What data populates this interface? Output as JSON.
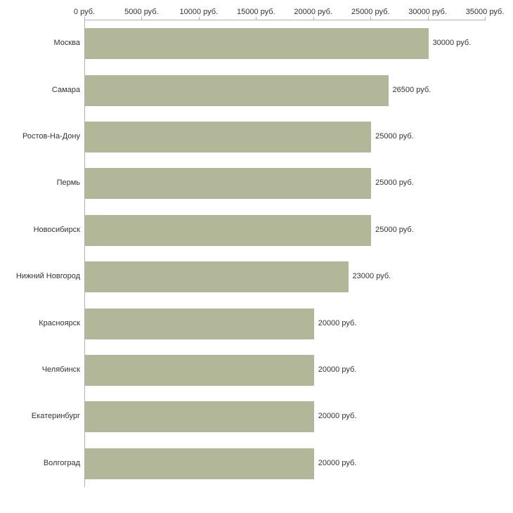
{
  "chart_data": {
    "type": "bar",
    "orientation": "horizontal",
    "title": "",
    "xlabel": "",
    "ylabel": "",
    "categories": [
      "Москва",
      "Самара",
      "Ростов-На-Дону",
      "Пермь",
      "Новосибирск",
      "Нижний Новгород",
      "Красноярск",
      "Челябинск",
      "Екатеринбург",
      "Волгоград"
    ],
    "values": [
      30000,
      26500,
      25000,
      25000,
      25000,
      23000,
      20000,
      20000,
      20000,
      20000
    ],
    "value_labels": [
      "30000 руб.",
      "26500 руб.",
      "25000 руб.",
      "25000 руб.",
      "25000 руб.",
      "23000 руб.",
      "20000 руб.",
      "20000 руб.",
      "20000 руб.",
      "20000 руб."
    ],
    "x_ticks": [
      "0 руб.",
      "5000 руб.",
      "10000 руб.",
      "15000 руб.",
      "20000 руб.",
      "25000 руб.",
      "30000 руб.",
      "35000 руб."
    ],
    "x_tick_values": [
      0,
      5000,
      10000,
      15000,
      20000,
      25000,
      30000,
      35000
    ],
    "xlim": [
      0,
      35000
    ],
    "grid": false,
    "legend": false,
    "colors": {
      "bar_fill": "#b2b79a",
      "axis_line": "#b0b0b0",
      "text": "#333333",
      "background": "#ffffff"
    }
  }
}
